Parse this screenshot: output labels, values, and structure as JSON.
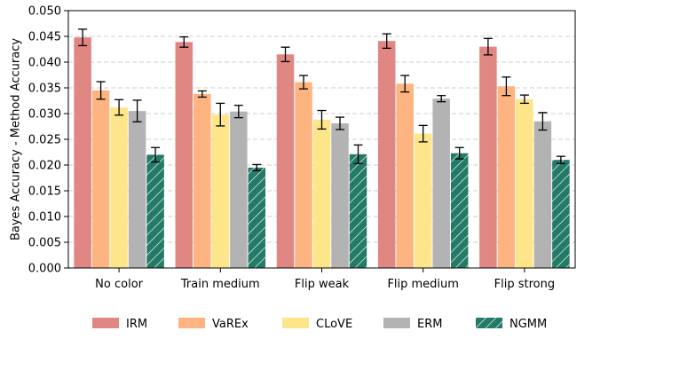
{
  "chart_data": {
    "type": "bar",
    "title": "",
    "xlabel": "",
    "ylabel": "Bayes Accuracy - Method Accuracy",
    "ylim": [
      0,
      0.05
    ],
    "yticks": [
      "0.000",
      "0.005",
      "0.010",
      "0.015",
      "0.020",
      "0.025",
      "0.030",
      "0.035",
      "0.040",
      "0.045",
      "0.050"
    ],
    "grid": "horizontal dashed",
    "legend_position": "bottom",
    "categories": [
      "No color",
      "Train medium",
      "Flip weak",
      "Flip medium",
      "Flip strong"
    ],
    "series": [
      {
        "name": "IRM",
        "color": "#e08683",
        "hatch": false,
        "values": [
          0.0448,
          0.0439,
          0.0415,
          0.0441,
          0.043
        ],
        "errors": [
          0.0016,
          0.001,
          0.0014,
          0.0014,
          0.0016
        ]
      },
      {
        "name": "VaREx",
        "color": "#fdb480",
        "hatch": false,
        "values": [
          0.0345,
          0.0338,
          0.0361,
          0.0358,
          0.0353
        ],
        "errors": [
          0.0017,
          0.0006,
          0.0013,
          0.0016,
          0.0018
        ]
      },
      {
        "name": "CLoVE",
        "color": "#fde68a",
        "hatch": false,
        "values": [
          0.0312,
          0.0298,
          0.0288,
          0.0261,
          0.0328
        ],
        "errors": [
          0.0015,
          0.0022,
          0.0018,
          0.0016,
          0.0008
        ]
      },
      {
        "name": "ERM",
        "color": "#b3b3b3",
        "hatch": false,
        "values": [
          0.0305,
          0.0304,
          0.0281,
          0.0329,
          0.0285
        ],
        "errors": [
          0.0021,
          0.0012,
          0.0012,
          0.0006,
          0.0017
        ]
      },
      {
        "name": "NGMM",
        "color": "#237a67",
        "hatch": true,
        "values": [
          0.022,
          0.0195,
          0.0221,
          0.0223,
          0.021
        ],
        "errors": [
          0.0014,
          0.0006,
          0.0018,
          0.0011,
          0.0007
        ]
      }
    ]
  }
}
